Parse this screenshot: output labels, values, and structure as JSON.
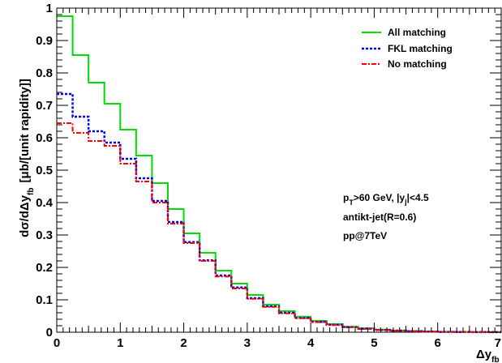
{
  "chart_data": {
    "type": "line",
    "step": true,
    "x_bin_edges": [
      0,
      0.25,
      0.5,
      0.75,
      1.0,
      1.25,
      1.5,
      1.75,
      2.0,
      2.25,
      2.5,
      2.75,
      3.0,
      3.25,
      3.5,
      3.75,
      4.0,
      4.25,
      4.5,
      4.75,
      5.0,
      5.25,
      5.5,
      5.75,
      6.0,
      6.25,
      6.5,
      6.75,
      7.0
    ],
    "series": [
      {
        "name": "All matching",
        "color": "#00dd00",
        "dash": "solid",
        "values": [
          0.975,
          0.855,
          0.77,
          0.705,
          0.625,
          0.545,
          0.46,
          0.38,
          0.305,
          0.245,
          0.19,
          0.15,
          0.115,
          0.085,
          0.065,
          0.048,
          0.035,
          0.025,
          0.017,
          0.012,
          0.008,
          0.005,
          0.003,
          0.002,
          0.001,
          0.0008,
          0.0005,
          0.0003
        ]
      },
      {
        "name": "FKL matching",
        "color": "#0000ff",
        "dash": "dotted",
        "values": [
          0.735,
          0.665,
          0.62,
          0.585,
          0.535,
          0.475,
          0.405,
          0.34,
          0.278,
          0.222,
          0.175,
          0.138,
          0.105,
          0.08,
          0.06,
          0.044,
          0.032,
          0.023,
          0.016,
          0.011,
          0.007,
          0.005,
          0.003,
          0.002,
          0.001,
          0.0007,
          0.0004,
          0.0002
        ]
      },
      {
        "name": "No matching",
        "color": "#ff0000",
        "dash": "dashdot",
        "values": [
          0.645,
          0.615,
          0.59,
          0.575,
          0.52,
          0.465,
          0.4,
          0.335,
          0.275,
          0.22,
          0.172,
          0.135,
          0.103,
          0.078,
          0.058,
          0.043,
          0.031,
          0.022,
          0.015,
          0.01,
          0.007,
          0.004,
          0.003,
          0.002,
          0.001,
          0.0006,
          0.0003,
          0.0002
        ]
      }
    ],
    "xlim": [
      0,
      7
    ],
    "ylim": [
      0,
      1
    ],
    "x_ticks": [
      "0",
      "1",
      "2",
      "3",
      "4",
      "5",
      "6",
      "7"
    ],
    "y_ticks": [
      "0",
      "0.1",
      "0.2",
      "0.3",
      "0.4",
      "0.5",
      "0.6",
      "0.7",
      "0.8",
      "0.9",
      "1"
    ],
    "xlabel": "Δy",
    "xlabel_subscript": "fb",
    "ylabel": "dσ/dΔy",
    "ylabel_subscript": "fb",
    "ylabel_units": "[μb/[unit rapidity]]",
    "legend_position": "top-right",
    "annotations": [
      "p",
      "T",
      ">60 GeV, |y",
      "j",
      "|<4.5",
      "antikt-jet(R=0.6)",
      "pp@7TeV"
    ],
    "grid": false
  }
}
